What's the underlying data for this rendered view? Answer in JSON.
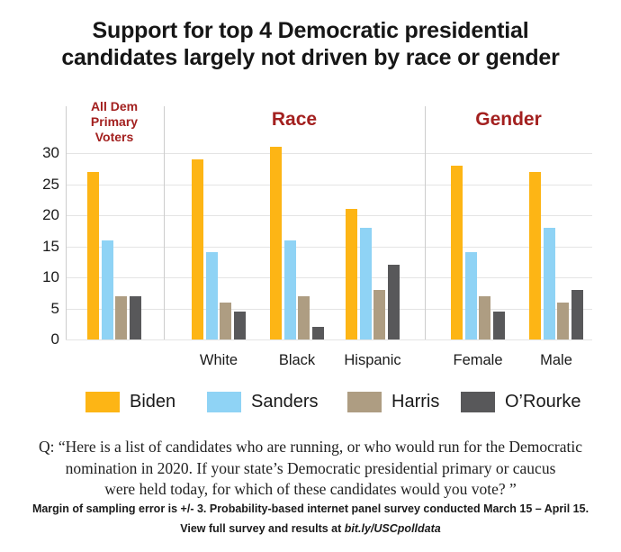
{
  "header": {
    "title_lines": [
      "Support for top 4 Democratic presidential",
      "candidates largely not driven by race or gender"
    ]
  },
  "chart_data": {
    "type": "bar",
    "title": "Support for top 4 Democratic presidential candidates largely not driven by race or gender",
    "ylabel": "",
    "xlabel": "",
    "ylim": [
      0,
      30
    ],
    "yticks": [
      0,
      5,
      10,
      15,
      20,
      25,
      30
    ],
    "grid": true,
    "legend_position": "bottom",
    "section_headers": [
      "All Dem Primary Voters",
      "Race",
      "Gender"
    ],
    "series": [
      {
        "name": "Biden",
        "color": "#FDB515"
      },
      {
        "name": "Sanders",
        "color": "#8FD3F5"
      },
      {
        "name": "Harris",
        "color": "#AE9D82"
      },
      {
        "name": "O’Rourke",
        "color": "#58585A"
      }
    ],
    "groups": [
      {
        "label": "",
        "section": "All Dem Primary Voters",
        "values": [
          27,
          16,
          7,
          7
        ]
      },
      {
        "label": "White",
        "section": "Race",
        "values": [
          29,
          14,
          6,
          4.5
        ]
      },
      {
        "label": "Black",
        "section": "Race",
        "values": [
          31,
          16,
          7,
          2
        ]
      },
      {
        "label": "Hispanic",
        "section": "Race",
        "values": [
          21,
          18,
          8,
          12
        ]
      },
      {
        "label": "Female",
        "section": "Gender",
        "values": [
          28,
          14,
          7,
          4.5
        ]
      },
      {
        "label": "Male",
        "section": "Gender",
        "values": [
          27,
          18,
          6,
          8
        ]
      }
    ]
  },
  "colors": {
    "section_header_red": "#A3201F",
    "gridline": "#E4E4E4"
  },
  "question": {
    "lines": [
      "Q: “Here is a list of candidates who are running, or who would run for the Democratic",
      "nomination in 2020. If your state’s Democratic presidential primary or caucus",
      "were held today, for which of these candidates would you vote? ”"
    ]
  },
  "footer": {
    "line1": "Margin of sampling error is +/- 3. Probability-based internet panel survey conducted March 15 – April 15.",
    "line2_text": "View full survey and results at",
    "line2_link": "bit.ly/USCpolldata"
  }
}
